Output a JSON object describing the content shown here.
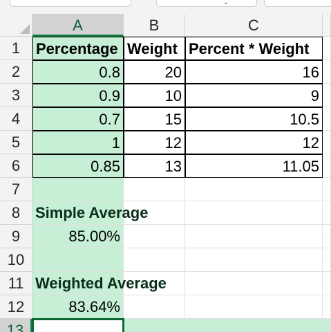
{
  "sheet": {
    "columns": [
      "A",
      "B",
      "C"
    ],
    "selected_column": "A",
    "rows": [
      {
        "num": "1",
        "a": "Percentage",
        "b": "Weight",
        "c": "Percent * Weight"
      },
      {
        "num": "2",
        "a": "0.8",
        "b": "20",
        "c": "16"
      },
      {
        "num": "3",
        "a": "0.9",
        "b": "10",
        "c": "9"
      },
      {
        "num": "4",
        "a": "0.7",
        "b": "15",
        "c": "10.5"
      },
      {
        "num": "5",
        "a": "1",
        "b": "12",
        "c": "12"
      },
      {
        "num": "6",
        "a": "0.85",
        "b": "13",
        "c": "11.05"
      },
      {
        "num": "7",
        "a": "",
        "b": "",
        "c": ""
      },
      {
        "num": "8",
        "a": "Simple Average",
        "b": "",
        "c": ""
      },
      {
        "num": "9",
        "a": "85.00%",
        "b": "",
        "c": ""
      },
      {
        "num": "10",
        "a": "",
        "b": "",
        "c": ""
      },
      {
        "num": "11",
        "a": "Weighted Average",
        "b": "",
        "c": ""
      },
      {
        "num": "12",
        "a": "83.64%",
        "b": "",
        "c": ""
      },
      {
        "num": "13",
        "a": "",
        "b": "",
        "c": ""
      }
    ],
    "active_cell": "A13"
  },
  "colors": {
    "selection_fill": "#c6efd5",
    "selection_border": "#137e43",
    "header_fill": "#f3f3f3",
    "gridline": "#e1e1e1"
  }
}
